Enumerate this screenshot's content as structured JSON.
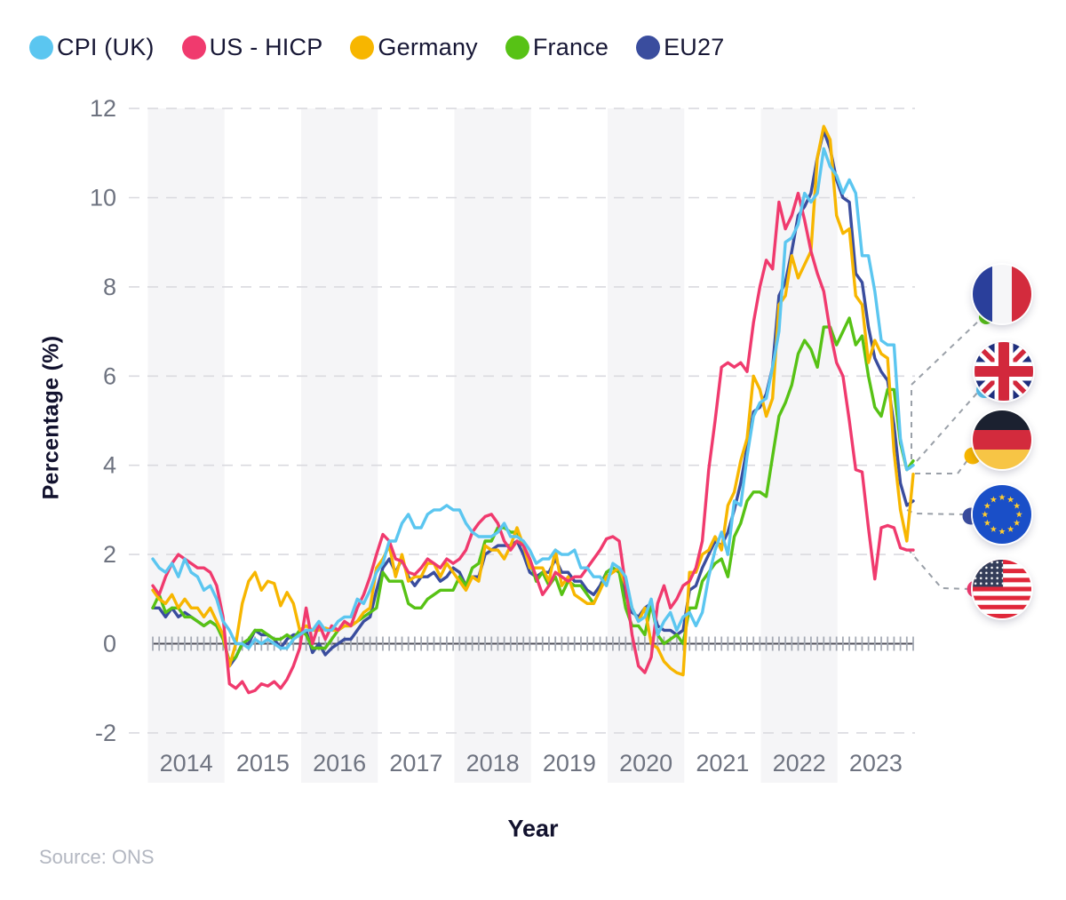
{
  "chart_data": {
    "type": "line",
    "xlabel": "Year",
    "ylabel": "Percentage (%)",
    "x_frequency": "monthly",
    "x_start": "2014-01",
    "x_end": "2023-12",
    "x_year_labels": [
      "2014",
      "2015",
      "2016",
      "2017",
      "2018",
      "2019",
      "2020",
      "2021",
      "2022",
      "2023"
    ],
    "y_ticks": [
      -2,
      0,
      2,
      4,
      6,
      8,
      10,
      12
    ],
    "ylim": [
      -2,
      12
    ],
    "grid": "horizontal-dashed",
    "legend_position": "top-left",
    "plot_bands": "alternating light-gray vertical bands on even years",
    "series": [
      {
        "name": "CPI (UK)",
        "color": "#5BC6F0",
        "values": [
          1.9,
          1.7,
          1.6,
          1.8,
          1.5,
          1.9,
          1.6,
          1.5,
          1.2,
          1.3,
          1.0,
          0.5,
          0.3,
          0.0,
          0.0,
          -0.1,
          0.1,
          0.0,
          0.1,
          0.0,
          -0.1,
          -0.1,
          0.1,
          0.2,
          0.3,
          0.3,
          0.5,
          0.3,
          0.3,
          0.5,
          0.6,
          0.6,
          1.0,
          0.9,
          1.2,
          1.6,
          1.8,
          2.3,
          2.3,
          2.7,
          2.9,
          2.6,
          2.6,
          2.9,
          3.0,
          3.0,
          3.1,
          3.0,
          3.0,
          2.7,
          2.5,
          2.4,
          2.4,
          2.4,
          2.5,
          2.7,
          2.4,
          2.4,
          2.3,
          2.1,
          1.8,
          1.9,
          1.9,
          2.1,
          2.0,
          2.0,
          2.1,
          1.7,
          1.7,
          1.5,
          1.5,
          1.3,
          1.8,
          1.7,
          1.5,
          0.8,
          0.5,
          0.6,
          1.0,
          0.2,
          0.5,
          0.7,
          0.3,
          0.6,
          0.7,
          0.4,
          0.7,
          1.5,
          2.1,
          2.5,
          2.0,
          3.2,
          3.1,
          4.2,
          5.1,
          5.4,
          5.5,
          6.2,
          7.0,
          9.0,
          9.1,
          9.4,
          10.1,
          9.9,
          10.1,
          11.1,
          10.7,
          10.5,
          10.1,
          10.4,
          10.1,
          8.7,
          8.7,
          7.9,
          6.8,
          6.7,
          6.7,
          4.6,
          3.9,
          4.0
        ]
      },
      {
        "name": "US - HICP",
        "color": "#F03A6E",
        "values": [
          1.3,
          1.1,
          1.5,
          1.8,
          2.0,
          1.9,
          1.8,
          1.7,
          1.7,
          1.6,
          1.3,
          0.6,
          -0.9,
          -1.0,
          -0.85,
          -1.1,
          -1.05,
          -0.9,
          -0.95,
          -0.85,
          -1.0,
          -0.8,
          -0.5,
          -0.1,
          0.8,
          0.0,
          0.45,
          0.1,
          0.4,
          0.3,
          0.5,
          0.4,
          0.8,
          1.1,
          1.5,
          2.0,
          2.45,
          2.3,
          1.9,
          1.85,
          1.6,
          1.55,
          1.7,
          1.9,
          1.8,
          1.7,
          1.9,
          1.8,
          1.9,
          2.1,
          2.5,
          2.7,
          2.85,
          2.9,
          2.7,
          2.3,
          2.1,
          2.3,
          2.2,
          1.9,
          1.5,
          1.1,
          1.3,
          1.6,
          1.5,
          1.4,
          1.5,
          1.5,
          1.7,
          1.9,
          2.1,
          2.35,
          2.4,
          2.3,
          1.3,
          0.2,
          -0.5,
          -0.65,
          -0.3,
          0.9,
          1.3,
          0.8,
          1.0,
          1.3,
          1.4,
          1.7,
          2.3,
          3.9,
          5.0,
          6.2,
          6.3,
          6.2,
          6.3,
          6.1,
          7.2,
          8.0,
          8.6,
          8.4,
          9.9,
          9.3,
          9.6,
          10.1,
          9.5,
          8.8,
          8.3,
          7.9,
          7.0,
          6.3,
          6.0,
          5.0,
          3.9,
          3.85,
          2.6,
          1.45,
          2.6,
          2.65,
          2.6,
          2.15,
          2.1,
          2.1
        ]
      },
      {
        "name": "Germany",
        "color": "#F7B600",
        "values": [
          1.2,
          1.0,
          0.9,
          1.1,
          0.8,
          1.0,
          0.8,
          0.8,
          0.6,
          0.8,
          0.5,
          0.2,
          -0.5,
          0.0,
          0.9,
          1.4,
          1.6,
          1.2,
          1.4,
          1.35,
          0.85,
          1.15,
          0.9,
          0.3,
          0.4,
          0.3,
          0.3,
          0.35,
          0.3,
          0.3,
          0.4,
          0.4,
          0.5,
          0.7,
          0.8,
          1.7,
          1.9,
          2.2,
          1.5,
          2.0,
          1.4,
          1.5,
          1.5,
          1.8,
          1.8,
          1.5,
          1.8,
          1.6,
          1.4,
          1.2,
          1.5,
          1.4,
          2.2,
          2.1,
          2.1,
          1.9,
          2.2,
          2.6,
          2.2,
          1.7,
          1.7,
          1.7,
          1.4,
          2.1,
          1.3,
          1.5,
          1.1,
          1.0,
          0.9,
          0.9,
          1.2,
          1.5,
          1.6,
          1.7,
          1.3,
          0.8,
          0.5,
          0.8,
          0.0,
          -0.1,
          -0.4,
          -0.55,
          -0.65,
          -0.7,
          1.6,
          1.6,
          2.0,
          2.1,
          2.4,
          2.1,
          3.1,
          3.4,
          4.1,
          4.6,
          6.0,
          5.7,
          5.1,
          5.5,
          7.6,
          7.8,
          8.7,
          8.2,
          8.5,
          8.8,
          10.9,
          11.6,
          11.3,
          9.6,
          9.2,
          9.3,
          7.8,
          7.6,
          6.3,
          6.8,
          6.5,
          6.4,
          4.3,
          3.0,
          2.3,
          3.8
        ]
      },
      {
        "name": "France",
        "color": "#57C215",
        "values": [
          0.8,
          1.1,
          0.7,
          0.8,
          0.8,
          0.6,
          0.6,
          0.5,
          0.4,
          0.5,
          0.4,
          0.1,
          -0.4,
          -0.3,
          0.0,
          0.1,
          0.3,
          0.3,
          0.2,
          0.1,
          0.1,
          0.2,
          0.1,
          0.3,
          0.2,
          -0.1,
          -0.1,
          -0.1,
          0.1,
          0.3,
          0.4,
          0.4,
          0.5,
          0.6,
          0.7,
          0.8,
          1.6,
          1.4,
          1.4,
          1.4,
          0.9,
          0.8,
          0.8,
          1.0,
          1.1,
          1.2,
          1.2,
          1.2,
          1.5,
          1.3,
          1.7,
          1.8,
          2.3,
          2.3,
          2.6,
          2.6,
          2.5,
          2.5,
          2.2,
          1.9,
          1.4,
          1.6,
          1.3,
          1.5,
          1.1,
          1.4,
          1.3,
          1.3,
          1.1,
          0.9,
          1.2,
          1.6,
          1.7,
          1.6,
          0.8,
          0.4,
          0.4,
          0.2,
          0.9,
          0.2,
          0.0,
          0.1,
          0.2,
          0.0,
          0.8,
          0.8,
          1.4,
          1.6,
          1.8,
          1.9,
          1.5,
          2.4,
          2.7,
          3.2,
          3.4,
          3.4,
          3.3,
          4.2,
          5.1,
          5.4,
          5.8,
          6.5,
          6.8,
          6.6,
          6.2,
          7.1,
          7.1,
          6.7,
          7.0,
          7.3,
          6.7,
          6.9,
          6.0,
          5.3,
          5.1,
          5.7,
          5.7,
          4.5,
          3.9,
          4.1
        ]
      },
      {
        "name": "EU27",
        "color": "#3A4D9E",
        "values": [
          0.8,
          0.8,
          0.6,
          0.8,
          0.6,
          0.7,
          0.6,
          0.5,
          0.4,
          0.5,
          0.4,
          0.2,
          -0.5,
          -0.3,
          0.0,
          0.0,
          0.3,
          0.2,
          0.2,
          0.1,
          -0.1,
          0.1,
          0.2,
          0.2,
          0.3,
          -0.2,
          0.0,
          -0.25,
          -0.1,
          0.0,
          0.1,
          0.1,
          0.3,
          0.5,
          0.6,
          1.2,
          1.7,
          1.9,
          1.6,
          1.9,
          1.5,
          1.3,
          1.5,
          1.5,
          1.6,
          1.4,
          1.5,
          1.7,
          1.6,
          1.3,
          1.5,
          1.5,
          2.0,
          2.1,
          2.2,
          2.2,
          2.2,
          2.3,
          2.0,
          1.6,
          1.5,
          1.6,
          1.6,
          1.9,
          1.6,
          1.6,
          1.4,
          1.4,
          1.2,
          1.1,
          1.3,
          1.6,
          1.7,
          1.6,
          1.1,
          0.7,
          0.6,
          0.8,
          0.9,
          0.4,
          0.3,
          0.3,
          0.2,
          0.3,
          1.2,
          1.3,
          1.7,
          2.0,
          2.3,
          2.2,
          2.5,
          3.0,
          3.6,
          4.4,
          5.2,
          5.3,
          5.6,
          6.2,
          7.8,
          8.1,
          8.8,
          9.6,
          9.8,
          10.1,
          10.9,
          11.5,
          11.1,
          10.4,
          10.0,
          9.9,
          8.3,
          8.1,
          7.1,
          6.4,
          6.1,
          5.9,
          4.9,
          3.6,
          3.1,
          3.2
        ]
      }
    ]
  },
  "annotations": {
    "end_flags": [
      {
        "flag": "france",
        "series": "France"
      },
      {
        "flag": "united-kingdom",
        "series": "CPI (UK)"
      },
      {
        "flag": "germany",
        "series": "Germany"
      },
      {
        "flag": "european-union",
        "series": "EU27"
      },
      {
        "flag": "united-states",
        "series": "US - HICP"
      }
    ]
  },
  "source_note": "Source: ONS"
}
